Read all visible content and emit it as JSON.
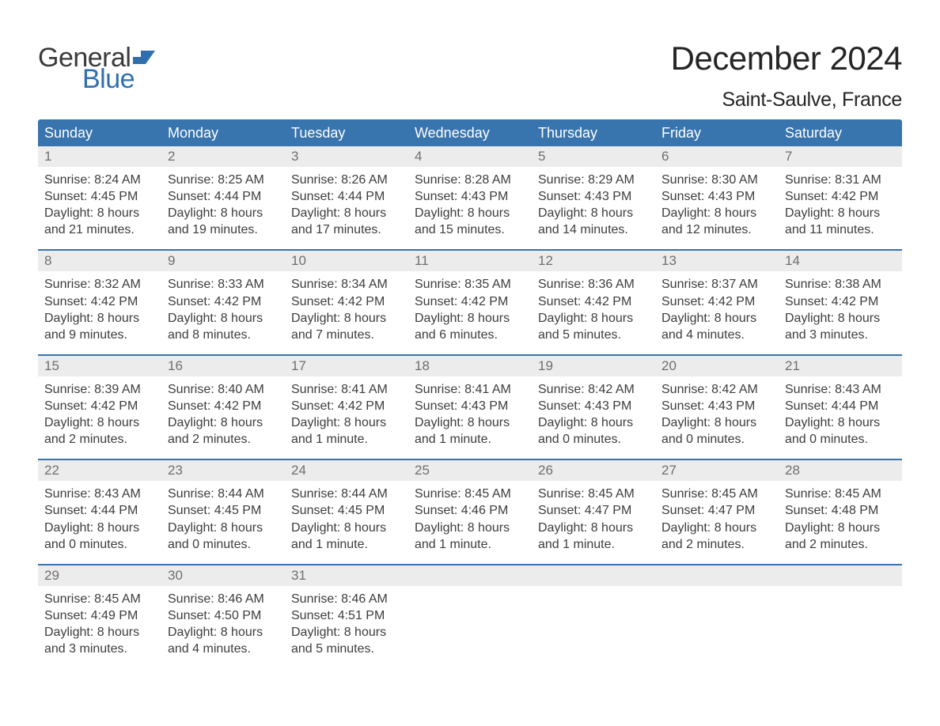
{
  "brand": {
    "general": "General",
    "blue": "Blue"
  },
  "title": "December 2024",
  "location": "Saint-Saulve, France",
  "colors": {
    "header_bg": "#3874ad",
    "header_text": "#ffffff",
    "daynum_bg": "#ececec",
    "daynum_text": "#6f6f6f",
    "body_text": "#3d3d3d",
    "rule": "#3874ad",
    "logo_gray": "#3a3a3a",
    "logo_blue": "#2f6fae",
    "page_bg": "#ffffff"
  },
  "typography": {
    "title_fontsize": 42,
    "location_fontsize": 25,
    "header_fontsize": 18,
    "daynum_fontsize": 17,
    "body_fontsize": 16,
    "logo_fontsize": 34
  },
  "weekday_headers": [
    "Sunday",
    "Monday",
    "Tuesday",
    "Wednesday",
    "Thursday",
    "Friday",
    "Saturday"
  ],
  "weeks": [
    [
      {
        "n": "1",
        "sunrise": "Sunrise: 8:24 AM",
        "sunset": "Sunset: 4:45 PM",
        "day1": "Daylight: 8 hours",
        "day2": "and 21 minutes."
      },
      {
        "n": "2",
        "sunrise": "Sunrise: 8:25 AM",
        "sunset": "Sunset: 4:44 PM",
        "day1": "Daylight: 8 hours",
        "day2": "and 19 minutes."
      },
      {
        "n": "3",
        "sunrise": "Sunrise: 8:26 AM",
        "sunset": "Sunset: 4:44 PM",
        "day1": "Daylight: 8 hours",
        "day2": "and 17 minutes."
      },
      {
        "n": "4",
        "sunrise": "Sunrise: 8:28 AM",
        "sunset": "Sunset: 4:43 PM",
        "day1": "Daylight: 8 hours",
        "day2": "and 15 minutes."
      },
      {
        "n": "5",
        "sunrise": "Sunrise: 8:29 AM",
        "sunset": "Sunset: 4:43 PM",
        "day1": "Daylight: 8 hours",
        "day2": "and 14 minutes."
      },
      {
        "n": "6",
        "sunrise": "Sunrise: 8:30 AM",
        "sunset": "Sunset: 4:43 PM",
        "day1": "Daylight: 8 hours",
        "day2": "and 12 minutes."
      },
      {
        "n": "7",
        "sunrise": "Sunrise: 8:31 AM",
        "sunset": "Sunset: 4:42 PM",
        "day1": "Daylight: 8 hours",
        "day2": "and 11 minutes."
      }
    ],
    [
      {
        "n": "8",
        "sunrise": "Sunrise: 8:32 AM",
        "sunset": "Sunset: 4:42 PM",
        "day1": "Daylight: 8 hours",
        "day2": "and 9 minutes."
      },
      {
        "n": "9",
        "sunrise": "Sunrise: 8:33 AM",
        "sunset": "Sunset: 4:42 PM",
        "day1": "Daylight: 8 hours",
        "day2": "and 8 minutes."
      },
      {
        "n": "10",
        "sunrise": "Sunrise: 8:34 AM",
        "sunset": "Sunset: 4:42 PM",
        "day1": "Daylight: 8 hours",
        "day2": "and 7 minutes."
      },
      {
        "n": "11",
        "sunrise": "Sunrise: 8:35 AM",
        "sunset": "Sunset: 4:42 PM",
        "day1": "Daylight: 8 hours",
        "day2": "and 6 minutes."
      },
      {
        "n": "12",
        "sunrise": "Sunrise: 8:36 AM",
        "sunset": "Sunset: 4:42 PM",
        "day1": "Daylight: 8 hours",
        "day2": "and 5 minutes."
      },
      {
        "n": "13",
        "sunrise": "Sunrise: 8:37 AM",
        "sunset": "Sunset: 4:42 PM",
        "day1": "Daylight: 8 hours",
        "day2": "and 4 minutes."
      },
      {
        "n": "14",
        "sunrise": "Sunrise: 8:38 AM",
        "sunset": "Sunset: 4:42 PM",
        "day1": "Daylight: 8 hours",
        "day2": "and 3 minutes."
      }
    ],
    [
      {
        "n": "15",
        "sunrise": "Sunrise: 8:39 AM",
        "sunset": "Sunset: 4:42 PM",
        "day1": "Daylight: 8 hours",
        "day2": "and 2 minutes."
      },
      {
        "n": "16",
        "sunrise": "Sunrise: 8:40 AM",
        "sunset": "Sunset: 4:42 PM",
        "day1": "Daylight: 8 hours",
        "day2": "and 2 minutes."
      },
      {
        "n": "17",
        "sunrise": "Sunrise: 8:41 AM",
        "sunset": "Sunset: 4:42 PM",
        "day1": "Daylight: 8 hours",
        "day2": "and 1 minute."
      },
      {
        "n": "18",
        "sunrise": "Sunrise: 8:41 AM",
        "sunset": "Sunset: 4:43 PM",
        "day1": "Daylight: 8 hours",
        "day2": "and 1 minute."
      },
      {
        "n": "19",
        "sunrise": "Sunrise: 8:42 AM",
        "sunset": "Sunset: 4:43 PM",
        "day1": "Daylight: 8 hours",
        "day2": "and 0 minutes."
      },
      {
        "n": "20",
        "sunrise": "Sunrise: 8:42 AM",
        "sunset": "Sunset: 4:43 PM",
        "day1": "Daylight: 8 hours",
        "day2": "and 0 minutes."
      },
      {
        "n": "21",
        "sunrise": "Sunrise: 8:43 AM",
        "sunset": "Sunset: 4:44 PM",
        "day1": "Daylight: 8 hours",
        "day2": "and 0 minutes."
      }
    ],
    [
      {
        "n": "22",
        "sunrise": "Sunrise: 8:43 AM",
        "sunset": "Sunset: 4:44 PM",
        "day1": "Daylight: 8 hours",
        "day2": "and 0 minutes."
      },
      {
        "n": "23",
        "sunrise": "Sunrise: 8:44 AM",
        "sunset": "Sunset: 4:45 PM",
        "day1": "Daylight: 8 hours",
        "day2": "and 0 minutes."
      },
      {
        "n": "24",
        "sunrise": "Sunrise: 8:44 AM",
        "sunset": "Sunset: 4:45 PM",
        "day1": "Daylight: 8 hours",
        "day2": "and 1 minute."
      },
      {
        "n": "25",
        "sunrise": "Sunrise: 8:45 AM",
        "sunset": "Sunset: 4:46 PM",
        "day1": "Daylight: 8 hours",
        "day2": "and 1 minute."
      },
      {
        "n": "26",
        "sunrise": "Sunrise: 8:45 AM",
        "sunset": "Sunset: 4:47 PM",
        "day1": "Daylight: 8 hours",
        "day2": "and 1 minute."
      },
      {
        "n": "27",
        "sunrise": "Sunrise: 8:45 AM",
        "sunset": "Sunset: 4:47 PM",
        "day1": "Daylight: 8 hours",
        "day2": "and 2 minutes."
      },
      {
        "n": "28",
        "sunrise": "Sunrise: 8:45 AM",
        "sunset": "Sunset: 4:48 PM",
        "day1": "Daylight: 8 hours",
        "day2": "and 2 minutes."
      }
    ],
    [
      {
        "n": "29",
        "sunrise": "Sunrise: 8:45 AM",
        "sunset": "Sunset: 4:49 PM",
        "day1": "Daylight: 8 hours",
        "day2": "and 3 minutes."
      },
      {
        "n": "30",
        "sunrise": "Sunrise: 8:46 AM",
        "sunset": "Sunset: 4:50 PM",
        "day1": "Daylight: 8 hours",
        "day2": "and 4 minutes."
      },
      {
        "n": "31",
        "sunrise": "Sunrise: 8:46 AM",
        "sunset": "Sunset: 4:51 PM",
        "day1": "Daylight: 8 hours",
        "day2": "and 5 minutes."
      },
      {
        "n": "",
        "sunrise": "",
        "sunset": "",
        "day1": "",
        "day2": ""
      },
      {
        "n": "",
        "sunrise": "",
        "sunset": "",
        "day1": "",
        "day2": ""
      },
      {
        "n": "",
        "sunrise": "",
        "sunset": "",
        "day1": "",
        "day2": ""
      },
      {
        "n": "",
        "sunrise": "",
        "sunset": "",
        "day1": "",
        "day2": ""
      }
    ]
  ]
}
